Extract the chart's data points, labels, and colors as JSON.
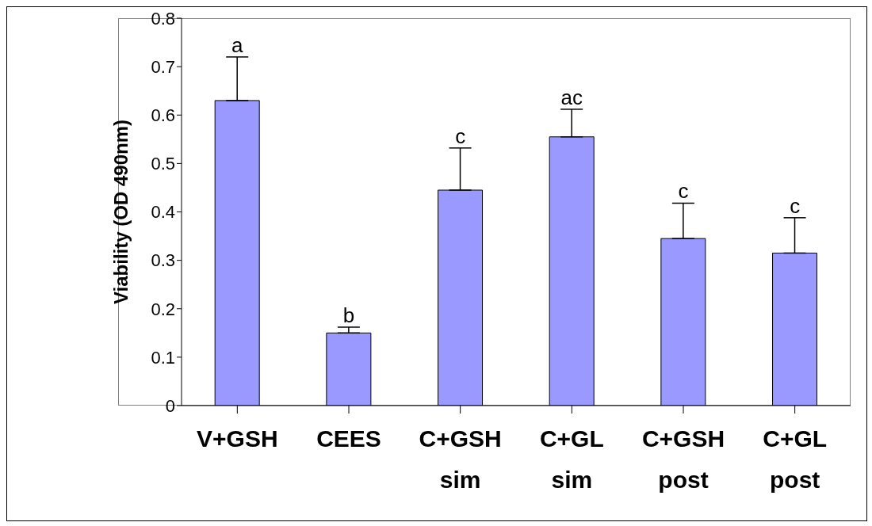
{
  "chart_data": {
    "type": "bar",
    "ylabel": "Viability (OD 490nm)",
    "categories": [
      "V+GSH",
      "CEES",
      "C+GSH\nsim",
      "C+GL\nsim",
      "C+GSH\npost",
      "C+GL\npost"
    ],
    "values": [
      0.63,
      0.15,
      0.445,
      0.555,
      0.345,
      0.315
    ],
    "errors": [
      [
        0.63,
        0.72
      ],
      [
        0.15,
        0.162
      ],
      [
        0.445,
        0.532
      ],
      [
        0.555,
        0.612
      ],
      [
        0.345,
        0.418
      ],
      [
        0.315,
        0.388
      ]
    ],
    "color": "#9999ff",
    "ylim": [
      0,
      0.8
    ],
    "yticks": [
      0,
      0.1,
      0.2,
      0.3,
      0.4,
      0.5,
      0.6,
      0.7,
      0.8
    ],
    "grid": false,
    "legend": false,
    "annotations": [
      "a",
      "b",
      "c",
      "ac",
      "c",
      "c"
    ]
  }
}
